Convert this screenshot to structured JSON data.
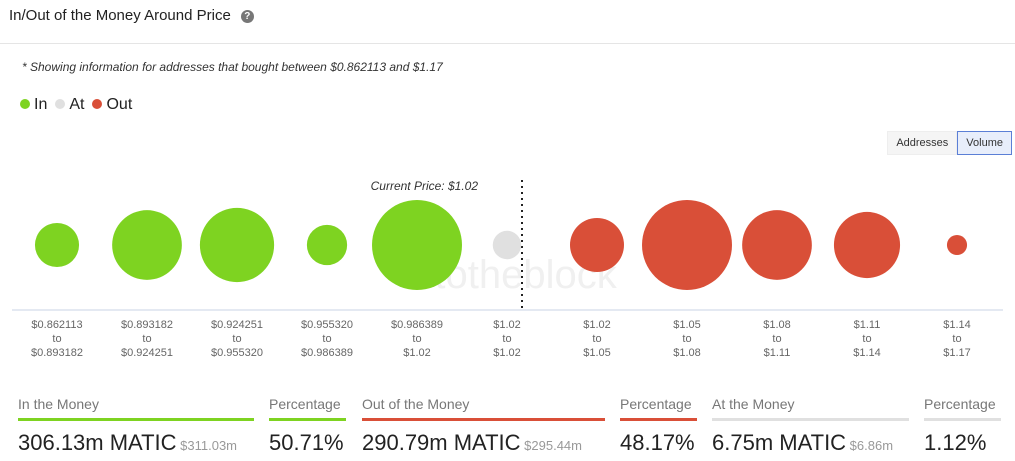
{
  "header": {
    "title": "In/Out of the Money Around Price",
    "help_icon": "question-circle-icon"
  },
  "note": "* Showing information for addresses that bought between $0.862113 and $1.17",
  "legend": [
    {
      "label": "In",
      "color": "#7ed321"
    },
    {
      "label": "At",
      "color": "#e0e0e0"
    },
    {
      "label": "Out",
      "color": "#d94f38"
    }
  ],
  "toggle": {
    "addresses": "Addresses",
    "volume": "Volume",
    "active": "Volume"
  },
  "chart_data": {
    "type": "bubble",
    "current_price_label": "Current Price: $1.02",
    "watermark": "intotheblock",
    "buckets": [
      {
        "from": "$0.862113",
        "to": "$0.893182",
        "status": "In",
        "relative_size": 0.24
      },
      {
        "from": "$0.893182",
        "to": "$0.924251",
        "status": "In",
        "relative_size": 0.6
      },
      {
        "from": "$0.924251",
        "to": "$0.955320",
        "status": "In",
        "relative_size": 0.68
      },
      {
        "from": "$0.955320",
        "to": "$0.986389",
        "status": "In",
        "relative_size": 0.2
      },
      {
        "from": "$0.986389",
        "to": "$1.02",
        "status": "In",
        "relative_size": 1.0
      },
      {
        "from": "$1.02",
        "to": "$1.02",
        "status": "At",
        "relative_size": 0.1
      },
      {
        "from": "$1.02",
        "to": "$1.05",
        "status": "Out",
        "relative_size": 0.36
      },
      {
        "from": "$1.05",
        "to": "$1.08",
        "status": "Out",
        "relative_size": 1.0
      },
      {
        "from": "$1.08",
        "to": "$1.11",
        "status": "Out",
        "relative_size": 0.6
      },
      {
        "from": "$1.11",
        "to": "$1.14",
        "status": "Out",
        "relative_size": 0.54
      },
      {
        "from": "$1.14",
        "to": "$1.17",
        "status": "Out",
        "relative_size": 0.05
      }
    ],
    "to_word": "to"
  },
  "stats": [
    {
      "label": "In the Money",
      "value": "306.13m MATIC",
      "usd": "$311.03m",
      "color": "#7ed321"
    },
    {
      "label": "Percentage",
      "value": "50.71%",
      "color": "#7ed321"
    },
    {
      "label": "Out of the Money",
      "value": "290.79m MATIC",
      "usd": "$295.44m",
      "color": "#d94f38"
    },
    {
      "label": "Percentage",
      "value": "48.17%",
      "color": "#d94f38"
    },
    {
      "label": "At the Money",
      "value": "6.75m MATIC",
      "usd": "$6.86m",
      "color": "#e0e0e0"
    },
    {
      "label": "Percentage",
      "value": "1.12%",
      "color": "#e0e0e0"
    }
  ]
}
